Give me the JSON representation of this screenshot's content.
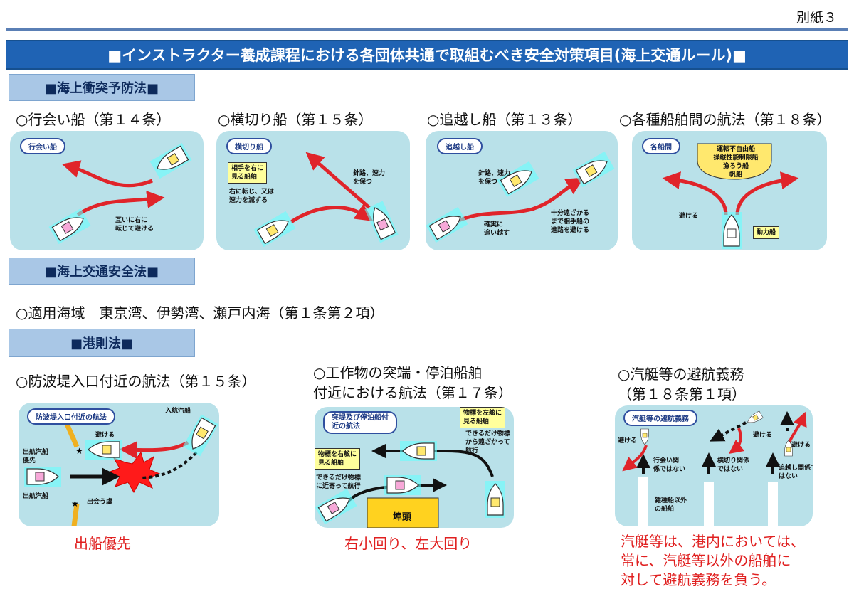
{
  "doc_label": "別紙３",
  "title": "■インストラクター養成課程における各団体共通で取組むべき安全対策項目(海上交通ルール)■",
  "sections": {
    "s1": {
      "heading": "■海上衝突予防法■",
      "items": [
        {
          "label": "○行会い船（第１４条）",
          "tag": "行会い船",
          "notes": [
            "互いに右に",
            "転じて避ける"
          ]
        },
        {
          "label": "○横切り船（第１５条）",
          "tag": "横切り船",
          "box": [
            "相手を右に",
            "見る船舶"
          ],
          "notes": [
            "右に転じ、又は",
            "速力を減ずる"
          ],
          "notes2": [
            "針路、速力",
            "を保つ"
          ]
        },
        {
          "label": "○追越し船（第１３条）",
          "tag": "追越し船",
          "notes": [
            "針路、速力",
            "を保つ"
          ],
          "notes2": [
            "確実に",
            "追い越す"
          ],
          "notes3": [
            "十分遠ざかる",
            "まで相手船の",
            "進路を避ける"
          ]
        },
        {
          "label": "○各種船舶間の航法（第１８条）",
          "tag": "各船間",
          "dome": [
            "運転不自由船",
            "操縦性能制限船",
            "漁ろう船",
            "帆船"
          ],
          "notes": [
            "避ける"
          ],
          "box": "動力船"
        }
      ]
    },
    "s2": {
      "heading": "■海上交通安全法■",
      "text": "○適用海域　東京湾、伊勢湾、瀬戸内海（第１条第２項）"
    },
    "s3": {
      "heading": "■港則法■",
      "items": [
        {
          "label": "○防波堤入口付近の航法（第１５条）",
          "tag": "防波堤入口付近の航法",
          "n_enter": "入航汽船",
          "n_avoid": "避ける",
          "n_out_prio": [
            "出航汽船",
            "優先"
          ],
          "n_out": "出航汽船",
          "n_meet": "出会う虞",
          "caption": "出船優先"
        },
        {
          "label_lines": [
            "○工作物の突端・停泊船舶",
            "付近における航法（第１７条）"
          ],
          "tag": [
            "突堤及び停泊船付",
            "近の航法"
          ],
          "box_left": [
            "物標を左舷に",
            "見る船舶"
          ],
          "note_left": [
            "できるだけ物標",
            "から遠ざかって",
            "航行"
          ],
          "box_right": [
            "物標を右舷に",
            "見る船舶"
          ],
          "note_right": [
            "できるだけ物標",
            "に近寄って航行"
          ],
          "wharf": "埠頭",
          "caption": "右小回り、左大回り"
        },
        {
          "label_lines": [
            "○汽艇等の避航義務",
            "（第１８条第１項）"
          ],
          "tag": "汽艇等の避航義務",
          "n_avoid": "避ける",
          "n_headon": [
            "行会い関",
            "係ではない"
          ],
          "n_cross": [
            "横切り関係",
            "ではない"
          ],
          "n_overtake": [
            "追越し関係で",
            "はない"
          ],
          "n_other": [
            "雑種船以外",
            "の船舶"
          ],
          "caption": [
            "汽艇等は、港内においては、",
            "常に、汽艇等以外の船舶に",
            "対して避航義務を負う。"
          ]
        }
      ]
    }
  }
}
